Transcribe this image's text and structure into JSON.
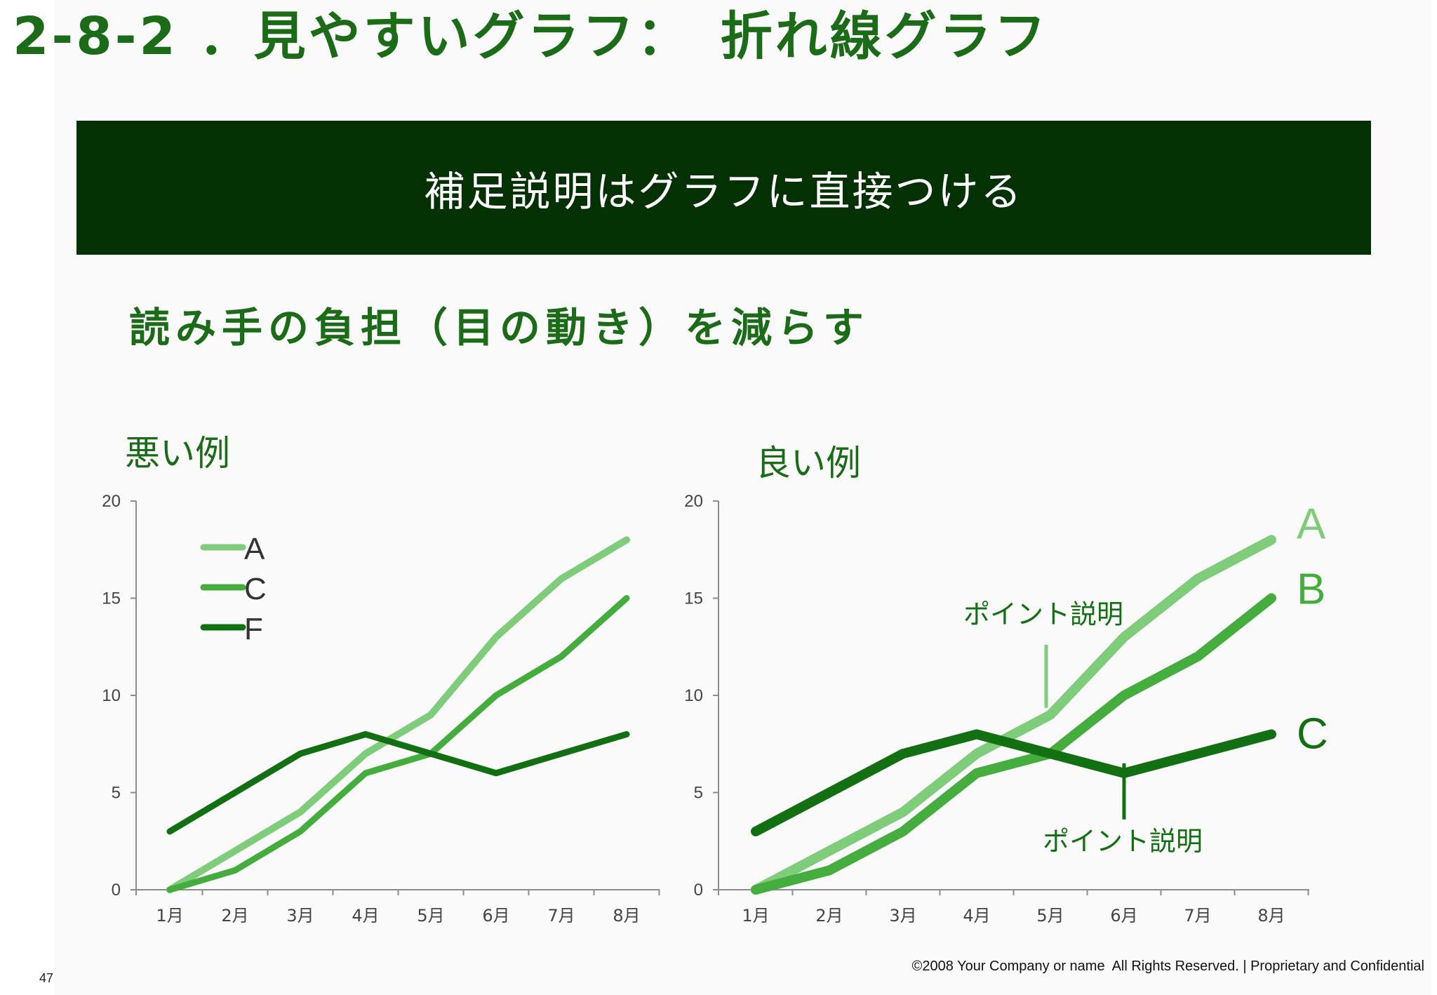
{
  "slide": {
    "title": "2-8-2 ．見やすいグラフ：　折れ線グラフ",
    "banner": "補足説明はグラフに直接つける",
    "subtitle": "読み手の負担（目の動き）を減らす",
    "page_number": "47",
    "footer": "©2008 Your Company or name  All Rights Reserved. | Proprietary and Confidential"
  },
  "colors": {
    "title": "#1c6b18",
    "banner_bg": "#033103",
    "series_A": "#7fcc7a",
    "series_C_mid": "#44ad3e",
    "series_dark": "#137012",
    "axis": "#8c8c8c",
    "tick_text": "#444444"
  },
  "chart_data": [
    {
      "type": "line",
      "label": "悪い例",
      "categories": [
        "1月",
        "2月",
        "3月",
        "4月",
        "5月",
        "6月",
        "7月",
        "8月"
      ],
      "ylim": [
        0,
        20
      ],
      "yticks": [
        0,
        5,
        10,
        15,
        20
      ],
      "grid": false,
      "legend": "top-left",
      "series": [
        {
          "name": "A",
          "values": [
            0,
            2,
            4,
            7,
            9,
            13,
            16,
            18
          ],
          "color": "#7fcc7a"
        },
        {
          "name": "C",
          "values": [
            0,
            1,
            3,
            6,
            7,
            10,
            12,
            15
          ],
          "color": "#44ad3e"
        },
        {
          "name": "F",
          "values": [
            3,
            5,
            7,
            8,
            7,
            6,
            7,
            8
          ],
          "color": "#137012"
        }
      ]
    },
    {
      "type": "line",
      "label": "良い例",
      "categories": [
        "1月",
        "2月",
        "3月",
        "4月",
        "5月",
        "6月",
        "7月",
        "8月"
      ],
      "ylim": [
        0,
        20
      ],
      "yticks": [
        0,
        5,
        10,
        15,
        20
      ],
      "grid": false,
      "legend": "direct labels at line ends",
      "series": [
        {
          "name": "A",
          "values": [
            0,
            2,
            4,
            7,
            9,
            13,
            16,
            18
          ],
          "color": "#7fcc7a"
        },
        {
          "name": "B",
          "values": [
            0,
            1,
            3,
            6,
            7,
            10,
            12,
            15
          ],
          "color": "#44ad3e"
        },
        {
          "name": "C",
          "values": [
            3,
            5,
            7,
            8,
            7,
            6,
            7,
            8
          ],
          "color": "#137012"
        }
      ],
      "annotations": [
        {
          "text": "ポイント説明",
          "series": "A",
          "category": "5月"
        },
        {
          "text": "ポイント説明",
          "series": "C",
          "category": "6月"
        }
      ]
    }
  ]
}
